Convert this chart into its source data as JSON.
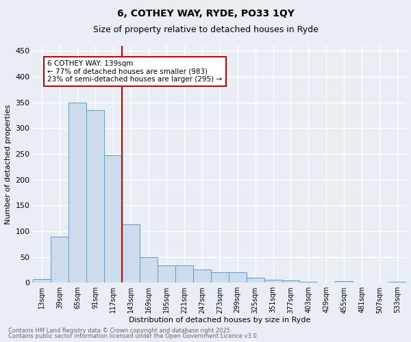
{
  "title1": "6, COTHEY WAY, RYDE, PO33 1QY",
  "title2": "Size of property relative to detached houses in Ryde",
  "xlabel": "Distribution of detached houses by size in Ryde",
  "ylabel": "Number of detached properties",
  "bar_values": [
    7,
    90,
    350,
    335,
    248,
    113,
    50,
    33,
    33,
    25,
    20,
    20,
    10,
    5,
    4,
    2,
    0,
    3,
    0,
    1,
    2
  ],
  "bin_labels": [
    "13sqm",
    "39sqm",
    "65sqm",
    "91sqm",
    "117sqm",
    "143sqm",
    "169sqm",
    "195sqm",
    "221sqm",
    "247sqm",
    "273sqm",
    "299sqm",
    "325sqm",
    "351sqm",
    "377sqm",
    "403sqm",
    "429sqm",
    "455sqm",
    "481sqm",
    "507sqm",
    "533sqm"
  ],
  "bar_color": "#ccdcec",
  "bar_edge_color": "#6699bb",
  "vline_color": "#cc0000",
  "annotation_text": "6 COTHEY WAY: 139sqm\n← 77% of detached houses are smaller (983)\n23% of semi-detached houses are larger (295) →",
  "annotation_box_color": "#ffffff",
  "annotation_box_edge_color": "#cc0000",
  "ylim": [
    0,
    460
  ],
  "yticks": [
    0,
    50,
    100,
    150,
    200,
    250,
    300,
    350,
    400,
    450
  ],
  "footnote1": "Contains HM Land Registry data © Crown copyright and database right 2025.",
  "footnote2": "Contains public sector information licensed under the Open Government Licence v3.0.",
  "bg_color": "#e8eef4",
  "plot_bg_color": "#e8eef4",
  "grid_color": "#ffffff"
}
